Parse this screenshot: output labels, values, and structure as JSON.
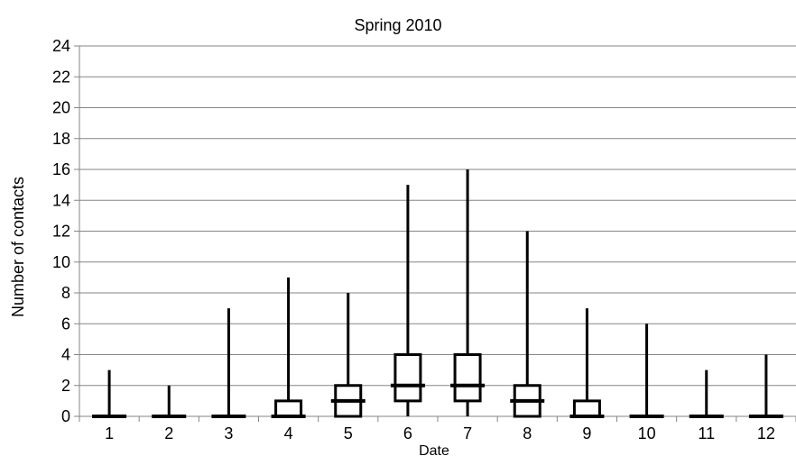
{
  "chart_data": {
    "type": "boxplot",
    "title": "Spring 2010",
    "xlabel": "Date",
    "ylabel": "Number of contacts",
    "categories": [
      "1",
      "2",
      "3",
      "4",
      "5",
      "6",
      "7",
      "8",
      "9",
      "10",
      "11",
      "12"
    ],
    "ylim": [
      0,
      24
    ],
    "yticks": [
      "0",
      "2",
      "4",
      "6",
      "8",
      "10",
      "12",
      "14",
      "16",
      "18",
      "20",
      "22",
      "24"
    ],
    "grid": true,
    "legend": "none",
    "series": [
      {
        "min": [
          0,
          0,
          0,
          0,
          0,
          0,
          0,
          0,
          0,
          0,
          0,
          0
        ],
        "q1": [
          0,
          0,
          0,
          0,
          0,
          1,
          1,
          0,
          0,
          0,
          0,
          0
        ],
        "median": [
          0,
          0,
          0,
          0,
          1,
          2,
          2,
          1,
          0,
          0,
          0,
          0
        ],
        "q3": [
          0,
          0,
          0,
          1,
          2,
          4,
          4,
          2,
          1,
          0,
          0,
          0
        ],
        "max": [
          3,
          2,
          7,
          9,
          8,
          15,
          16,
          12,
          7,
          6,
          3,
          4
        ]
      }
    ],
    "colors": {
      "line": "#000000",
      "grid": "#868686",
      "axis": "#868686"
    }
  }
}
